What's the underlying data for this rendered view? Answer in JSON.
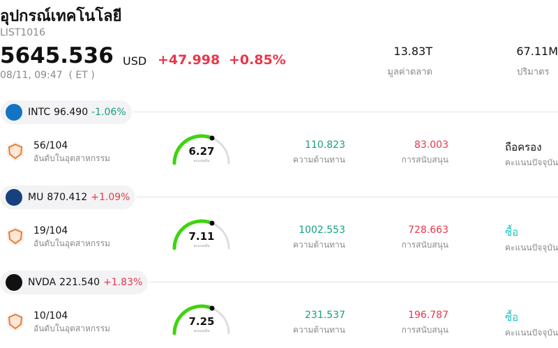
{
  "header": {
    "title": "อุปกรณ์เทคโนโลยี",
    "code": "LIST1016",
    "price": "5645.536",
    "currency": "USD",
    "change": "+47.998",
    "change_pct": "+0.85%",
    "time": "08/11, 09:47  ( ET )",
    "market_cap": "13.83T",
    "market_cap_label": "มูลค่าตลาด",
    "volume": "67.11M",
    "volume_label": "ปริมาตร"
  },
  "stocks": [
    {
      "ticker": "INTC",
      "price": "96.490",
      "change": "-1.06%",
      "change_color": "#12a080",
      "logo_color": "#1474c4",
      "rank": "56/104",
      "rank_label": "อันดับในอุตสาหกรรม",
      "score": "6.27",
      "score_label": "คะแนนหุ้น",
      "resistance": "110.823",
      "resistance_label": "ความต้านทาน",
      "support": "83.003",
      "support_label": "การสนับสนุน",
      "rating": "ถือครอง",
      "rating_color": "#111111",
      "rating_label": "คะแนนปัจจุบัน"
    },
    {
      "ticker": "MU",
      "price": "870.412",
      "change": "+1.09%",
      "change_color": "#e8374a",
      "logo_color": "#17417e",
      "rank": "19/104",
      "rank_label": "อันดับในอุตสาหกรรม",
      "score": "7.11",
      "score_label": "คะแนนหุ้น",
      "resistance": "1002.553",
      "resistance_label": "ความต้านทาน",
      "support": "728.663",
      "support_label": "การสนับสนุน",
      "rating": "ซื้อ",
      "rating_color": "#22c4c0",
      "rating_label": "คะแนนปัจจุบัน"
    },
    {
      "ticker": "NVDA",
      "price": "221.540",
      "change": "+1.83%",
      "change_color": "#e8374a",
      "logo_color": "#111111",
      "rank": "10/104",
      "rank_label": "อันดับในอุตสาหกรรม",
      "score": "7.25",
      "score_label": "คะแนนหุ้น",
      "resistance": "231.537",
      "resistance_label": "ความต้านทาน",
      "support": "196.787",
      "support_label": "การสนับสนุน",
      "rating": "ซื้อ",
      "rating_color": "#22c4c0",
      "rating_label": "คะแนนปัจจุบัน"
    }
  ]
}
